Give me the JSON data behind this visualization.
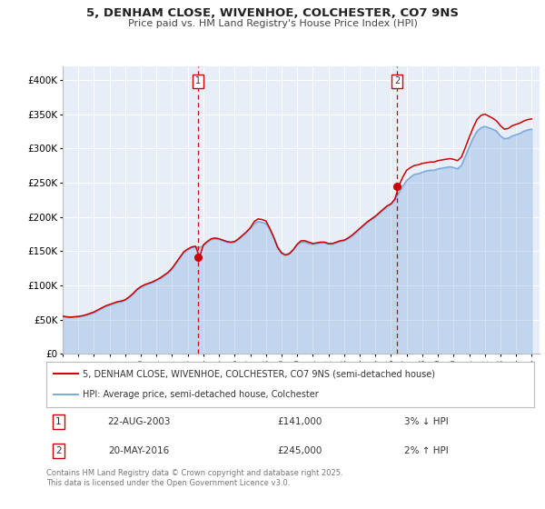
{
  "title": "5, DENHAM CLOSE, WIVENHOE, COLCHESTER, CO7 9NS",
  "subtitle": "Price paid vs. HM Land Registry's House Price Index (HPI)",
  "background_color": "#ffffff",
  "plot_bg_color": "#e8eef8",
  "grid_color": "#ffffff",
  "ylim": [
    0,
    420000
  ],
  "xlim_start": 1995.0,
  "xlim_end": 2025.5,
  "marker1_x": 2003.64,
  "marker1_y": 141000,
  "marker2_x": 2016.38,
  "marker2_y": 245000,
  "legend1_label": "5, DENHAM CLOSE, WIVENHOE, COLCHESTER, CO7 9NS (semi-detached house)",
  "legend2_label": "HPI: Average price, semi-detached house, Colchester",
  "event1_date": "22-AUG-2003",
  "event1_price": "£141,000",
  "event1_hpi": "3% ↓ HPI",
  "event2_date": "20-MAY-2016",
  "event2_price": "£245,000",
  "event2_hpi": "2% ↑ HPI",
  "footer": "Contains HM Land Registry data © Crown copyright and database right 2025.\nThis data is licensed under the Open Government Licence v3.0.",
  "line_color_red": "#cc0000",
  "line_color_blue": "#7aabdc",
  "vline_color": "#cc0000",
  "hpi_data_x": [
    1995.0,
    1995.25,
    1995.5,
    1995.75,
    1996.0,
    1996.25,
    1996.5,
    1996.75,
    1997.0,
    1997.25,
    1997.5,
    1997.75,
    1998.0,
    1998.25,
    1998.5,
    1998.75,
    1999.0,
    1999.25,
    1999.5,
    1999.75,
    2000.0,
    2000.25,
    2000.5,
    2000.75,
    2001.0,
    2001.25,
    2001.5,
    2001.75,
    2002.0,
    2002.25,
    2002.5,
    2002.75,
    2003.0,
    2003.25,
    2003.5,
    2003.75,
    2004.0,
    2004.25,
    2004.5,
    2004.75,
    2005.0,
    2005.25,
    2005.5,
    2005.75,
    2006.0,
    2006.25,
    2006.5,
    2006.75,
    2007.0,
    2007.25,
    2007.5,
    2007.75,
    2008.0,
    2008.25,
    2008.5,
    2008.75,
    2009.0,
    2009.25,
    2009.5,
    2009.75,
    2010.0,
    2010.25,
    2010.5,
    2010.75,
    2011.0,
    2011.25,
    2011.5,
    2011.75,
    2012.0,
    2012.25,
    2012.5,
    2012.75,
    2013.0,
    2013.25,
    2013.5,
    2013.75,
    2014.0,
    2014.25,
    2014.5,
    2014.75,
    2015.0,
    2015.25,
    2015.5,
    2015.75,
    2016.0,
    2016.25,
    2016.5,
    2016.75,
    2017.0,
    2017.25,
    2017.5,
    2017.75,
    2018.0,
    2018.25,
    2018.5,
    2018.75,
    2019.0,
    2019.25,
    2019.5,
    2019.75,
    2020.0,
    2020.25,
    2020.5,
    2020.75,
    2021.0,
    2021.25,
    2021.5,
    2021.75,
    2022.0,
    2022.25,
    2022.5,
    2022.75,
    2023.0,
    2023.25,
    2023.5,
    2023.75,
    2024.0,
    2024.25,
    2024.5,
    2024.75,
    2025.0
  ],
  "hpi_data_y": [
    54000,
    53500,
    53000,
    53500,
    54000,
    55000,
    56500,
    58000,
    60000,
    63000,
    66000,
    69000,
    71000,
    73000,
    75000,
    76000,
    78000,
    82000,
    87000,
    93000,
    97000,
    100000,
    102000,
    104000,
    107000,
    110000,
    114000,
    118000,
    124000,
    132000,
    140000,
    148000,
    152000,
    155000,
    156000,
    155000,
    158000,
    163000,
    167000,
    168000,
    167000,
    165000,
    163000,
    162000,
    163000,
    167000,
    172000,
    177000,
    183000,
    190000,
    193000,
    192000,
    190000,
    182000,
    170000,
    157000,
    148000,
    145000,
    147000,
    152000,
    159000,
    163000,
    163000,
    161000,
    160000,
    161000,
    162000,
    162000,
    160000,
    160000,
    162000,
    164000,
    165000,
    168000,
    172000,
    177000,
    182000,
    187000,
    192000,
    196000,
    200000,
    205000,
    210000,
    215000,
    218000,
    225000,
    235000,
    245000,
    253000,
    258000,
    262000,
    263000,
    265000,
    267000,
    268000,
    268000,
    270000,
    271000,
    272000,
    273000,
    272000,
    270000,
    275000,
    288000,
    302000,
    315000,
    325000,
    330000,
    332000,
    330000,
    328000,
    325000,
    318000,
    314000,
    315000,
    318000,
    320000,
    322000,
    325000,
    327000,
    328000
  ],
  "price_data_x": [
    1995.0,
    1995.25,
    1995.5,
    1995.75,
    1996.0,
    1996.25,
    1996.5,
    1996.75,
    1997.0,
    1997.25,
    1997.5,
    1997.75,
    1998.0,
    1998.25,
    1998.5,
    1998.75,
    1999.0,
    1999.25,
    1999.5,
    1999.75,
    2000.0,
    2000.25,
    2000.5,
    2000.75,
    2001.0,
    2001.25,
    2001.5,
    2001.75,
    2002.0,
    2002.25,
    2002.5,
    2002.75,
    2003.0,
    2003.25,
    2003.5,
    2003.75,
    2004.0,
    2004.25,
    2004.5,
    2004.75,
    2005.0,
    2005.25,
    2005.5,
    2005.75,
    2006.0,
    2006.25,
    2006.5,
    2006.75,
    2007.0,
    2007.25,
    2007.5,
    2007.75,
    2008.0,
    2008.25,
    2008.5,
    2008.75,
    2009.0,
    2009.25,
    2009.5,
    2009.75,
    2010.0,
    2010.25,
    2010.5,
    2010.75,
    2011.0,
    2011.25,
    2011.5,
    2011.75,
    2012.0,
    2012.25,
    2012.5,
    2012.75,
    2013.0,
    2013.25,
    2013.5,
    2013.75,
    2014.0,
    2014.25,
    2014.5,
    2014.75,
    2015.0,
    2015.25,
    2015.5,
    2015.75,
    2016.0,
    2016.25,
    2016.5,
    2016.75,
    2017.0,
    2017.25,
    2017.5,
    2017.75,
    2018.0,
    2018.25,
    2018.5,
    2018.75,
    2019.0,
    2019.25,
    2019.5,
    2019.75,
    2020.0,
    2020.25,
    2020.5,
    2020.75,
    2021.0,
    2021.25,
    2021.5,
    2021.75,
    2022.0,
    2022.25,
    2022.5,
    2022.75,
    2023.0,
    2023.25,
    2023.5,
    2023.75,
    2024.0,
    2024.25,
    2024.5,
    2024.75,
    2025.0
  ],
  "price_data_y": [
    55000,
    54000,
    53500,
    54000,
    54500,
    55500,
    57000,
    59000,
    61000,
    64000,
    67000,
    70000,
    72000,
    74000,
    76000,
    77000,
    79000,
    83000,
    88000,
    94000,
    98000,
    101000,
    103000,
    105000,
    108000,
    111000,
    115000,
    119000,
    125000,
    133000,
    141000,
    149000,
    153000,
    156000,
    157000,
    141000,
    159000,
    164000,
    168000,
    169000,
    168000,
    166000,
    164000,
    163000,
    164000,
    168000,
    173000,
    178000,
    184000,
    193000,
    197000,
    196000,
    194000,
    183000,
    170000,
    155000,
    147000,
    144000,
    146000,
    152000,
    160000,
    165000,
    165000,
    163000,
    161000,
    162000,
    163000,
    163000,
    161000,
    161000,
    163000,
    165000,
    166000,
    169000,
    173000,
    178000,
    183000,
    188000,
    193000,
    197000,
    201000,
    206000,
    211000,
    216000,
    219000,
    226000,
    245000,
    258000,
    268000,
    272000,
    275000,
    276000,
    278000,
    279000,
    280000,
    280000,
    282000,
    283000,
    284000,
    285000,
    284000,
    282000,
    287000,
    301000,
    316000,
    330000,
    342000,
    348000,
    350000,
    347000,
    344000,
    340000,
    333000,
    328000,
    329000,
    333000,
    335000,
    337000,
    340000,
    342000,
    343000
  ],
  "yticks": [
    0,
    50000,
    100000,
    150000,
    200000,
    250000,
    300000,
    350000,
    400000
  ],
  "ytick_labels": [
    "£0",
    "£50K",
    "£100K",
    "£150K",
    "£200K",
    "£250K",
    "£300K",
    "£350K",
    "£400K"
  ],
  "xticks": [
    1995,
    1996,
    1997,
    1998,
    1999,
    2000,
    2001,
    2002,
    2003,
    2004,
    2005,
    2006,
    2007,
    2008,
    2009,
    2010,
    2011,
    2012,
    2013,
    2014,
    2015,
    2016,
    2017,
    2018,
    2019,
    2020,
    2021,
    2022,
    2023,
    2024,
    2025
  ]
}
